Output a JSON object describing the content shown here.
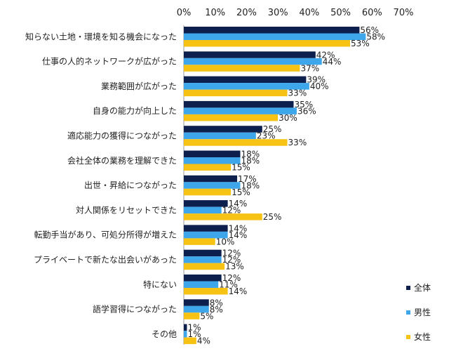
{
  "chart_data": {
    "type": "bar",
    "orientation": "horizontal",
    "title": "",
    "xlabel": "",
    "ylabel": "",
    "xlim": [
      0,
      70
    ],
    "x_ticks": [
      "0%",
      "10%",
      "20%",
      "30%",
      "40%",
      "50%",
      "60%",
      "70%"
    ],
    "x_axis_position": "top",
    "grid": false,
    "legend_position": "right-bottom",
    "categories": [
      "知らない土地・環境を知る機会になった",
      "仕事の人的ネットワークが広がった",
      "業務範囲が広がった",
      "自身の能力が向上した",
      "適応能力の獲得につながった",
      "会社全体の業務を理解できた",
      "出世・昇給につながった",
      "対人関係をリセットできた",
      "転勤手当があり、可処分所得が増えた",
      "プライベートで新たな出会いがあった",
      "特にない",
      "語学習得につながった",
      "その他"
    ],
    "series": [
      {
        "name": "全体",
        "color": "#0d1f4d",
        "values": [
          56,
          42,
          39,
          35,
          25,
          18,
          17,
          14,
          14,
          12,
          12,
          8,
          1
        ]
      },
      {
        "name": "男性",
        "color": "#3ea6ea",
        "values": [
          58,
          44,
          40,
          36,
          23,
          18,
          18,
          12,
          14,
          12,
          11,
          8,
          1
        ]
      },
      {
        "name": "女性",
        "color": "#f6c213",
        "values": [
          53,
          37,
          33,
          30,
          33,
          15,
          15,
          25,
          10,
          13,
          14,
          5,
          4
        ]
      }
    ],
    "value_suffix": "%"
  }
}
